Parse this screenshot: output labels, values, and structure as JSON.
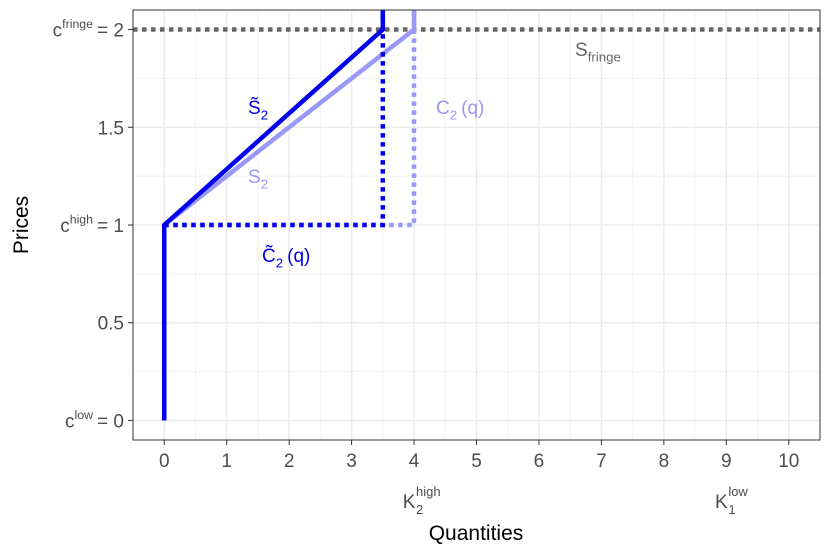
{
  "chart_data": {
    "type": "line",
    "x_label": "Quantities",
    "y_label": "Prices",
    "xlim": [
      -0.5,
      10.5
    ],
    "ylim": [
      -0.1,
      2.1
    ],
    "xticks": [
      0,
      1,
      2,
      3,
      4,
      5,
      6,
      7,
      8,
      9,
      10
    ],
    "yticks": [
      {
        "value": 0,
        "label": "c",
        "label_sup": "low",
        "label_end": "= 0"
      },
      {
        "value": 0.5,
        "label": "0.5"
      },
      {
        "value": 1,
        "label": "c",
        "label_sup": "high",
        "label_end": "= 1"
      },
      {
        "value": 1.5,
        "label": "1.5"
      },
      {
        "value": 2,
        "label": "c",
        "label_sup": "fringe",
        "label_end": "= 2"
      }
    ],
    "grid": true,
    "x_annotations": [
      {
        "x": 4,
        "label": "K",
        "sub": "2",
        "sup": "high"
      },
      {
        "x": 9,
        "label": "K",
        "sub": "1",
        "sup": "low"
      }
    ],
    "series": [
      {
        "name": "S",
        "name_sub": "2",
        "color": "#9999f5",
        "dash": false,
        "x": [
          0,
          0,
          4,
          4
        ],
        "values": [
          0,
          1,
          2,
          2.1
        ]
      },
      {
        "name": "C",
        "name_sub": "2",
        "name_end": "(q)",
        "color": "#9999f5",
        "dash": true,
        "x": [
          0,
          4,
          4
        ],
        "values": [
          1,
          1,
          2.1
        ]
      },
      {
        "name": "S̃",
        "name_sub": "2",
        "color": "#0000ee",
        "dash": false,
        "x": [
          0,
          0,
          3.5,
          3.5
        ],
        "values": [
          0,
          1,
          2,
          2.1
        ]
      },
      {
        "name": "C̃",
        "name_sub": "2",
        "name_end": "(q)",
        "color": "#0000ee",
        "dash": true,
        "x": [
          0,
          3.5,
          3.5
        ],
        "values": [
          1,
          1,
          2.1
        ]
      }
    ],
    "hline": {
      "name": "S",
      "name_sub": "fringe",
      "value": 2,
      "color": "#666666"
    }
  }
}
